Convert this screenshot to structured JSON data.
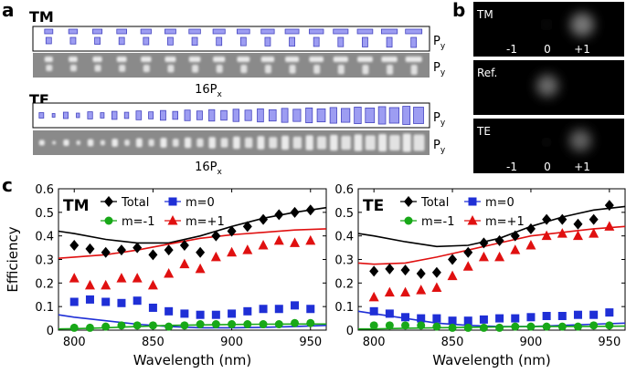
{
  "panel_labels": {
    "a": "a",
    "b": "b",
    "c": "c"
  },
  "panel_a": {
    "tm_label": "TM",
    "te_label": "TE",
    "py": "P",
    "py_sub": "y",
    "px_prefix": "16P",
    "px_sub": "x",
    "tm_count": 16,
    "te_count": 16
  },
  "panel_b": {
    "tm_label": "TM",
    "ref_label": "Ref.",
    "te_label": "TE",
    "orders": [
      "-1",
      "0",
      "+1"
    ]
  },
  "colors": {
    "total": "#000000",
    "m0": "#1f2fd6",
    "mm1": "#18a818",
    "mp1": "#e01010",
    "rect_fill": "#9d9df2",
    "rect_stroke": "#4545c0"
  },
  "chart_data": [
    {
      "type": "scatter",
      "title": "TM",
      "xlabel": "Wavelength (nm)",
      "ylabel": "Efficiency",
      "xlim": [
        790,
        960
      ],
      "ylim": [
        0,
        0.6
      ],
      "xticks": [
        800,
        850,
        900,
        950
      ],
      "yticks": [
        0,
        0.1,
        0.2,
        0.3,
        0.4,
        0.5,
        0.6
      ],
      "x": [
        800,
        810,
        820,
        830,
        840,
        850,
        860,
        870,
        880,
        890,
        900,
        910,
        920,
        930,
        940,
        950
      ],
      "series": [
        {
          "name": "Total",
          "key": "total",
          "marker": "diamond",
          "values": [
            0.36,
            0.345,
            0.33,
            0.34,
            0.35,
            0.32,
            0.34,
            0.36,
            0.33,
            0.4,
            0.42,
            0.44,
            0.47,
            0.49,
            0.5,
            0.51
          ]
        },
        {
          "name": "m=0",
          "key": "m0",
          "marker": "square",
          "values": [
            0.12,
            0.13,
            0.12,
            0.115,
            0.125,
            0.095,
            0.08,
            0.07,
            0.065,
            0.065,
            0.07,
            0.08,
            0.09,
            0.09,
            0.105,
            0.09
          ]
        },
        {
          "name": "m=-1",
          "key": "mm1",
          "marker": "circle",
          "values": [
            0.01,
            0.01,
            0.015,
            0.02,
            0.02,
            0.02,
            0.015,
            0.02,
            0.025,
            0.025,
            0.025,
            0.025,
            0.025,
            0.025,
            0.03,
            0.03
          ]
        },
        {
          "name": "m=+1",
          "key": "mp1",
          "marker": "triangle",
          "values": [
            0.22,
            0.19,
            0.19,
            0.22,
            0.22,
            0.19,
            0.24,
            0.28,
            0.26,
            0.31,
            0.33,
            0.34,
            0.36,
            0.38,
            0.37,
            0.38
          ]
        }
      ],
      "lines": [
        {
          "key": "total",
          "x": [
            790,
            800,
            820,
            840,
            860,
            880,
            900,
            920,
            940,
            960
          ],
          "y": [
            0.42,
            0.41,
            0.385,
            0.37,
            0.37,
            0.4,
            0.44,
            0.475,
            0.5,
            0.52
          ]
        },
        {
          "key": "mp1",
          "x": [
            790,
            800,
            820,
            840,
            860,
            880,
            900,
            920,
            940,
            960
          ],
          "y": [
            0.305,
            0.31,
            0.32,
            0.34,
            0.365,
            0.39,
            0.405,
            0.415,
            0.425,
            0.43
          ]
        },
        {
          "key": "m0",
          "x": [
            790,
            800,
            820,
            840,
            860,
            880,
            900,
            920,
            940,
            960
          ],
          "y": [
            0.065,
            0.055,
            0.04,
            0.025,
            0.015,
            0.01,
            0.01,
            0.012,
            0.015,
            0.02
          ]
        },
        {
          "key": "mm1",
          "x": [
            790,
            800,
            820,
            840,
            860,
            880,
            900,
            920,
            940,
            960
          ],
          "y": [
            0.005,
            0.006,
            0.01,
            0.015,
            0.02,
            0.022,
            0.024,
            0.025,
            0.026,
            0.026
          ]
        }
      ]
    },
    {
      "type": "scatter",
      "title": "TE",
      "xlabel": "Wavelength (nm)",
      "ylabel": "",
      "xlim": [
        790,
        960
      ],
      "ylim": [
        0,
        0.6
      ],
      "xticks": [
        800,
        850,
        900,
        950
      ],
      "yticks": [
        0,
        0.1,
        0.2,
        0.3,
        0.4,
        0.5,
        0.6
      ],
      "x": [
        800,
        810,
        820,
        830,
        840,
        850,
        860,
        870,
        880,
        890,
        900,
        910,
        920,
        930,
        940,
        950
      ],
      "series": [
        {
          "name": "Total",
          "key": "total",
          "marker": "diamond",
          "values": [
            0.25,
            0.26,
            0.255,
            0.24,
            0.245,
            0.3,
            0.33,
            0.37,
            0.38,
            0.4,
            0.43,
            0.47,
            0.47,
            0.45,
            0.47,
            0.53
          ]
        },
        {
          "name": "m=0",
          "key": "m0",
          "marker": "square",
          "values": [
            0.08,
            0.07,
            0.055,
            0.05,
            0.05,
            0.04,
            0.04,
            0.045,
            0.05,
            0.05,
            0.055,
            0.06,
            0.06,
            0.065,
            0.065,
            0.075
          ]
        },
        {
          "name": "m=-1",
          "key": "mm1",
          "marker": "circle",
          "values": [
            0.02,
            0.02,
            0.02,
            0.02,
            0.015,
            0.01,
            0.01,
            0.01,
            0.01,
            0.015,
            0.015,
            0.015,
            0.015,
            0.015,
            0.02,
            0.02
          ]
        },
        {
          "name": "m=+1",
          "key": "mp1",
          "marker": "triangle",
          "values": [
            0.14,
            0.16,
            0.16,
            0.17,
            0.18,
            0.23,
            0.27,
            0.31,
            0.31,
            0.34,
            0.36,
            0.4,
            0.41,
            0.4,
            0.41,
            0.44
          ]
        }
      ],
      "lines": [
        {
          "key": "total",
          "x": [
            790,
            800,
            820,
            840,
            860,
            880,
            900,
            920,
            940,
            960
          ],
          "y": [
            0.41,
            0.4,
            0.375,
            0.355,
            0.36,
            0.39,
            0.44,
            0.48,
            0.51,
            0.525
          ]
        },
        {
          "key": "mp1",
          "x": [
            790,
            800,
            820,
            840,
            860,
            880,
            900,
            920,
            940,
            960
          ],
          "y": [
            0.285,
            0.28,
            0.285,
            0.31,
            0.34,
            0.37,
            0.4,
            0.415,
            0.43,
            0.44
          ]
        },
        {
          "key": "m0",
          "x": [
            790,
            800,
            820,
            840,
            860,
            880,
            900,
            920,
            940,
            960
          ],
          "y": [
            0.08,
            0.07,
            0.05,
            0.03,
            0.02,
            0.015,
            0.015,
            0.02,
            0.025,
            0.03
          ]
        },
        {
          "key": "mm1",
          "x": [
            790,
            800,
            820,
            840,
            860,
            880,
            900,
            920,
            940,
            960
          ],
          "y": [
            0.005,
            0.005,
            0.008,
            0.01,
            0.012,
            0.014,
            0.015,
            0.016,
            0.016,
            0.017
          ]
        }
      ]
    }
  ]
}
